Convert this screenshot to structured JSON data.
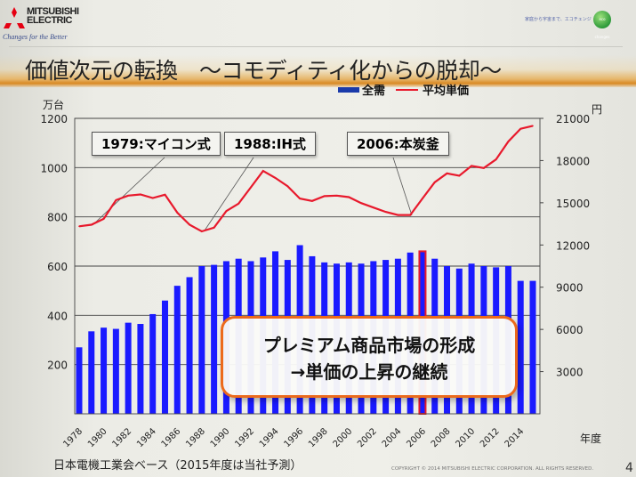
{
  "header": {
    "logo_text": "MITSUBISHI ELECTRIC",
    "tagline": "Changes for the Better",
    "eco_text": "家庭から宇宙まで、エコチェンジ",
    "eco_logo": "eco changes"
  },
  "title": "価値次元の転換　～コモディティ化からの脱却～",
  "callout": {
    "line1": "プレミアム商品市場の形成",
    "line2": "→単価の上昇の継続",
    "border_color": "#ec6a1c"
  },
  "annotations": [
    {
      "label": "1979:マイコン式"
    },
    {
      "label": "1988:IH式"
    },
    {
      "label": "2006:本炭釜"
    }
  ],
  "footer": {
    "source": "日本電機工業会ベース（2015年度は当社予測）",
    "copyright": "COPYRIGHT © 2014 MITSUBISHI ELECTRIC CORPORATION. ALL RIGHTS RESERVED.",
    "page_number": "4"
  },
  "chart_data": {
    "type": "bar+line",
    "legend_position": "top",
    "grid": true,
    "xlabel": "年度",
    "ylabel_left": "万台",
    "ylabel_right": "円",
    "ylim_left": [
      0,
      1200
    ],
    "ylim_right": [
      0,
      21000
    ],
    "yticks_left": [
      "200",
      "400",
      "600",
      "800",
      "1000",
      "1200"
    ],
    "yticks_right": [
      "3000",
      "6000",
      "9000",
      "12000",
      "15000",
      "18000",
      "21000"
    ],
    "x_tick_labels": [
      "1978",
      "1980",
      "1982",
      "1984",
      "1986",
      "1988",
      "1990",
      "1992",
      "1994",
      "1996",
      "1998",
      "2000",
      "2002",
      "2004",
      "2006",
      "2008",
      "2010",
      "2012",
      "2014"
    ],
    "categories": [
      1978,
      1979,
      1980,
      1981,
      1982,
      1983,
      1984,
      1985,
      1986,
      1987,
      1988,
      1989,
      1990,
      1991,
      1992,
      1993,
      1994,
      1995,
      1996,
      1997,
      1998,
      1999,
      2000,
      2001,
      2002,
      2003,
      2004,
      2005,
      2006,
      2007,
      2008,
      2009,
      2010,
      2011,
      2012,
      2013,
      2014,
      2015
    ],
    "highlight_category": 2006,
    "series": [
      {
        "name": "全需",
        "type": "bar",
        "axis": "left",
        "color": "#1a1aff",
        "values": [
          270,
          335,
          350,
          345,
          370,
          365,
          405,
          460,
          520,
          555,
          600,
          605,
          620,
          630,
          620,
          635,
          660,
          625,
          685,
          640,
          615,
          610,
          615,
          610,
          620,
          625,
          630,
          655,
          660,
          630,
          600,
          590,
          610,
          600,
          595,
          600,
          540,
          540
        ]
      },
      {
        "name": "平均単価",
        "type": "line",
        "axis": "right",
        "color": "#e8192c",
        "values": [
          13330,
          13440,
          13860,
          15190,
          15510,
          15590,
          15340,
          15570,
          14300,
          13440,
          12970,
          13230,
          14410,
          14940,
          16100,
          17260,
          16770,
          16180,
          15300,
          15130,
          15470,
          15510,
          15400,
          14980,
          14660,
          14350,
          14130,
          14130,
          15300,
          16460,
          17090,
          16920,
          17620,
          17470,
          18080,
          19350,
          20260,
          20470
        ]
      }
    ]
  }
}
